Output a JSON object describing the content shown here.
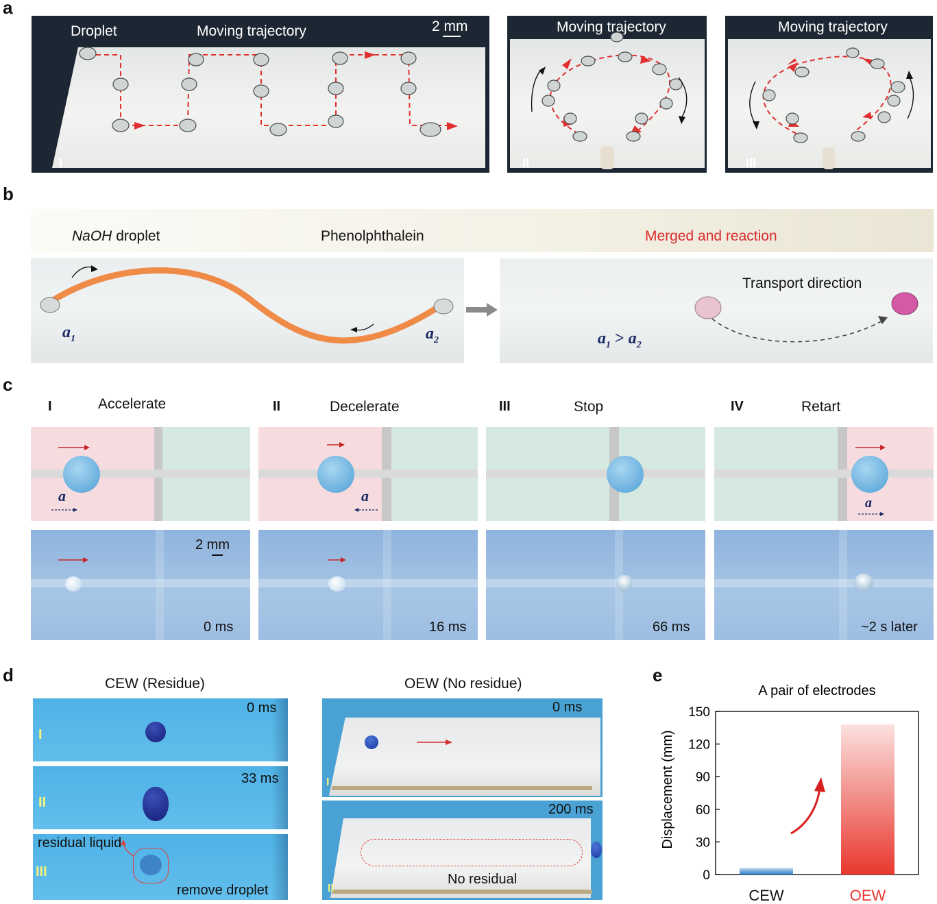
{
  "panel_letters": {
    "a": "a",
    "b": "b",
    "c": "c",
    "d": "d",
    "e": "e"
  },
  "a": {
    "droplet": "Droplet",
    "moving_trajectory": "Moving trajectory",
    "scale": "2 mm",
    "roman": [
      "I",
      "II",
      "III"
    ]
  },
  "b": {
    "naoh": "NaOH",
    "droplet": " droplet",
    "phenol": "Phenolphthalein",
    "merged": "Merged and reaction",
    "transport": "Transport direction",
    "a1": "a",
    "a1_sub": "1",
    "a2": "a",
    "a2_sub": "2",
    "ineq_a1": "a",
    "ineq_sub1": "1",
    "ineq_gt": " > ",
    "ineq_a2": "a",
    "ineq_sub2": "2",
    "merged_color": "#d92b2b",
    "path_color": "#ef8a47"
  },
  "c": {
    "stages": [
      {
        "roman": "I",
        "label": "Accelerate",
        "time": "0 ms",
        "accel": "a"
      },
      {
        "roman": "II",
        "label": "Decelerate",
        "time": "16 ms",
        "accel": "a"
      },
      {
        "roman": "III",
        "label": "Stop",
        "time": "66 ms"
      },
      {
        "roman": "IV",
        "label": "Retart",
        "time": "~2 s later",
        "accel": "a"
      }
    ],
    "scale": "2 mm"
  },
  "d": {
    "cew_title": "CEW (Residue)",
    "oew_title": "OEW (No residue)",
    "cew_frames": [
      {
        "roman": "I",
        "time": "0 ms"
      },
      {
        "roman": "II",
        "time": "33 ms"
      },
      {
        "roman": "III"
      }
    ],
    "residual": "residual liquid",
    "remove": "remove droplet",
    "oew_frames": [
      {
        "roman": "I",
        "time": "0 ms"
      },
      {
        "roman": "II",
        "time": "200 ms"
      }
    ],
    "no_residual": "No residual"
  },
  "chart_data": {
    "type": "bar",
    "title": "A pair of electrodes",
    "ylabel": "Displacement (mm)",
    "xlabel": "",
    "categories": [
      "CEW",
      "OEW"
    ],
    "values": [
      6,
      138
    ],
    "ylim": [
      0,
      150
    ],
    "yticks": [
      0,
      30,
      60,
      90,
      120,
      150
    ],
    "colors": {
      "CEW": "#2d7fc9",
      "OEW": "#e8382f"
    },
    "grid": false
  }
}
